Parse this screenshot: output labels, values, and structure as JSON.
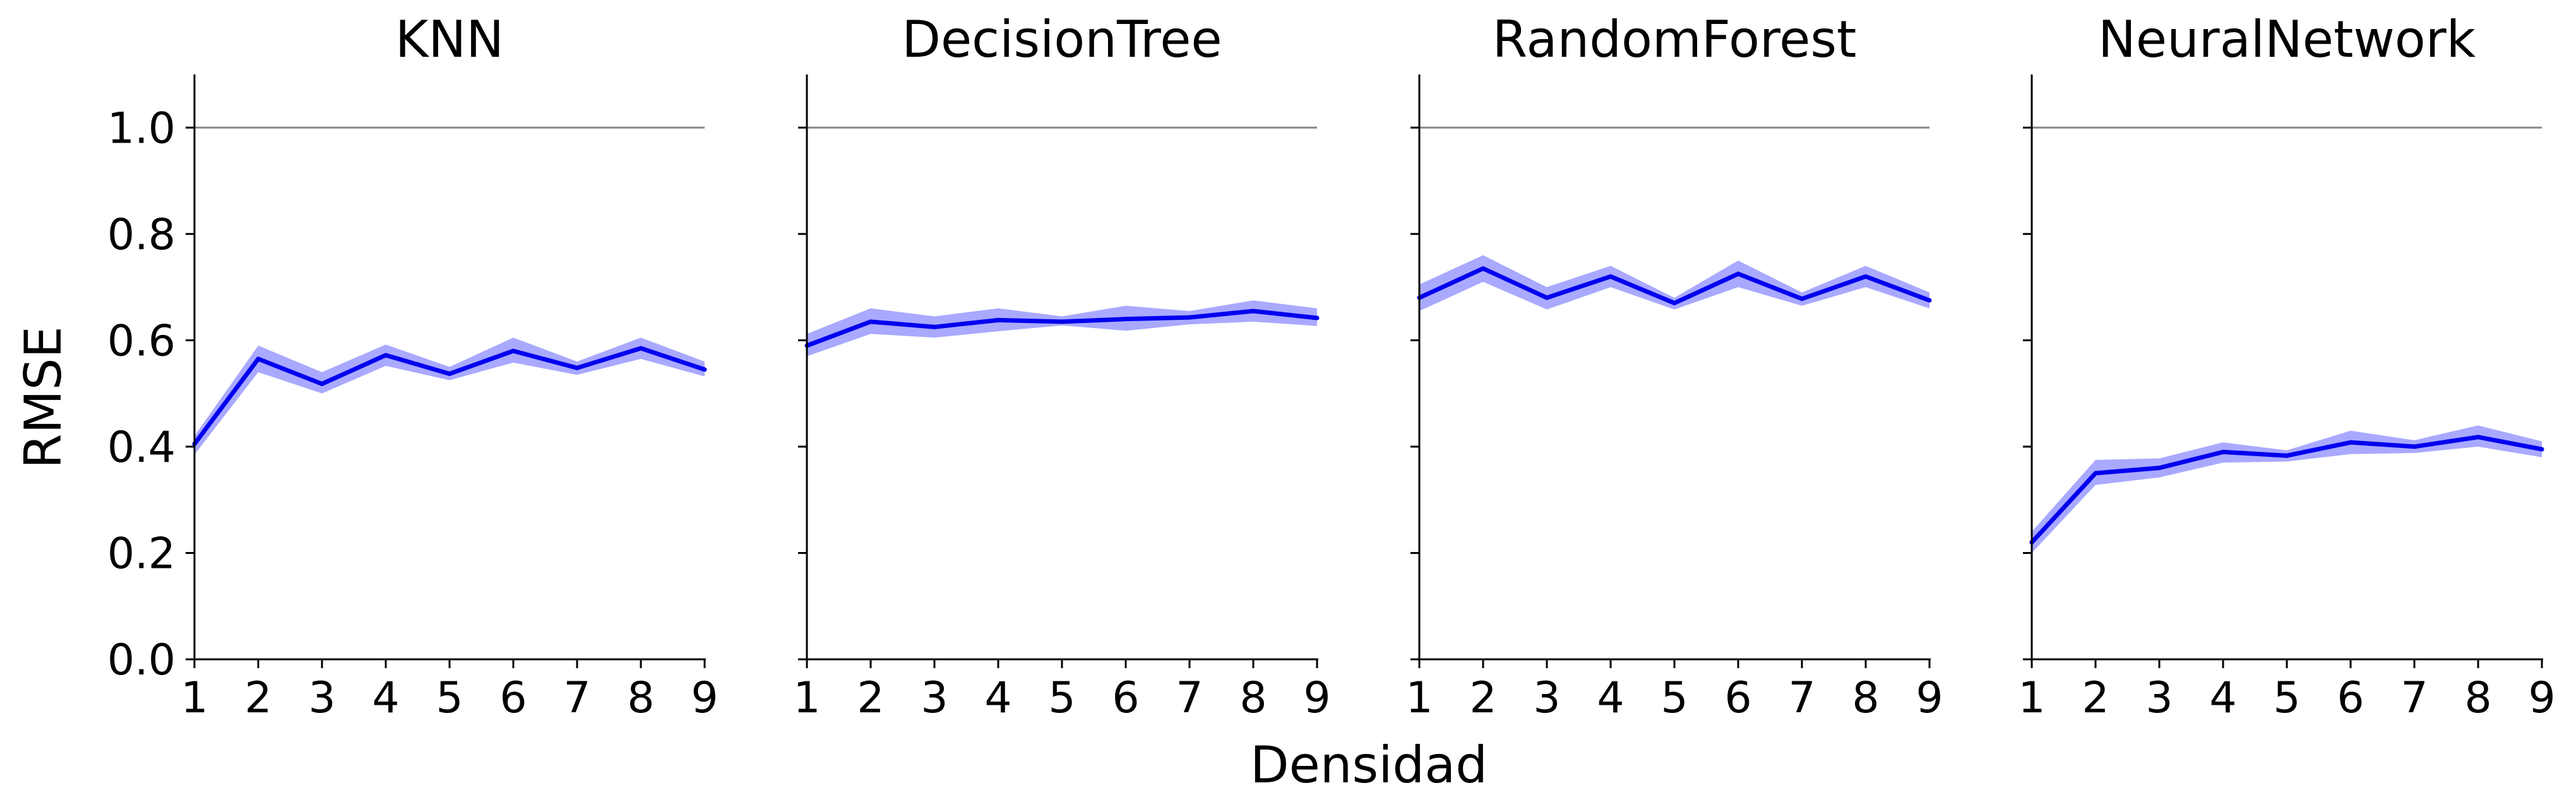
{
  "figure": {
    "xlabel": "Densidad",
    "ylabel": "RMSE"
  },
  "colors": {
    "line": "#0000ee",
    "band": "#a9a9ff",
    "reference": "#888888",
    "axis": "#000000"
  },
  "chart_data": [
    {
      "type": "line",
      "title": "KNN",
      "x": [
        1,
        2,
        3,
        4,
        5,
        6,
        7,
        8,
        9
      ],
      "values": [
        0.405,
        0.565,
        0.518,
        0.572,
        0.537,
        0.58,
        0.548,
        0.585,
        0.545
      ],
      "band_lower": [
        0.385,
        0.54,
        0.5,
        0.552,
        0.525,
        0.558,
        0.535,
        0.565,
        0.532
      ],
      "band_upper": [
        0.42,
        0.59,
        0.54,
        0.592,
        0.55,
        0.605,
        0.56,
        0.605,
        0.56
      ],
      "reference_y": 1.0,
      "xlim": [
        1,
        9
      ],
      "ylim": [
        0,
        1.1
      ],
      "xticks": [
        "1",
        "2",
        "3",
        "4",
        "5",
        "6",
        "7",
        "8",
        "9"
      ],
      "yticks": [
        "0.0",
        "0.2",
        "0.4",
        "0.6",
        "0.8",
        "1.0"
      ]
    },
    {
      "type": "line",
      "title": "DecisionTree",
      "x": [
        1,
        2,
        3,
        4,
        5,
        6,
        7,
        8,
        9
      ],
      "values": [
        0.59,
        0.635,
        0.625,
        0.638,
        0.635,
        0.64,
        0.643,
        0.655,
        0.642
      ],
      "band_lower": [
        0.57,
        0.612,
        0.605,
        0.617,
        0.628,
        0.618,
        0.63,
        0.635,
        0.627
      ],
      "band_upper": [
        0.612,
        0.66,
        0.645,
        0.66,
        0.645,
        0.665,
        0.655,
        0.675,
        0.66
      ],
      "reference_y": 1.0,
      "xlim": [
        1,
        9
      ],
      "ylim": [
        0,
        1.1
      ],
      "xticks": [
        "1",
        "2",
        "3",
        "4",
        "5",
        "6",
        "7",
        "8",
        "9"
      ],
      "yticks": []
    },
    {
      "type": "line",
      "title": "RandomForest",
      "x": [
        1,
        2,
        3,
        4,
        5,
        6,
        7,
        8,
        9
      ],
      "values": [
        0.68,
        0.735,
        0.68,
        0.72,
        0.67,
        0.725,
        0.678,
        0.72,
        0.675
      ],
      "band_lower": [
        0.655,
        0.71,
        0.658,
        0.7,
        0.658,
        0.7,
        0.665,
        0.7,
        0.66
      ],
      "band_upper": [
        0.705,
        0.76,
        0.7,
        0.74,
        0.68,
        0.75,
        0.69,
        0.74,
        0.69
      ],
      "reference_y": 1.0,
      "xlim": [
        1,
        9
      ],
      "ylim": [
        0,
        1.1
      ],
      "xticks": [
        "1",
        "2",
        "3",
        "4",
        "5",
        "6",
        "7",
        "8",
        "9"
      ],
      "yticks": []
    },
    {
      "type": "line",
      "title": "NeuralNetwork",
      "x": [
        1,
        2,
        3,
        4,
        5,
        6,
        7,
        8,
        9
      ],
      "values": [
        0.22,
        0.35,
        0.36,
        0.39,
        0.383,
        0.408,
        0.4,
        0.418,
        0.395
      ],
      "band_lower": [
        0.2,
        0.328,
        0.342,
        0.37,
        0.372,
        0.386,
        0.388,
        0.4,
        0.38
      ],
      "band_upper": [
        0.24,
        0.375,
        0.378,
        0.408,
        0.393,
        0.43,
        0.412,
        0.44,
        0.41
      ],
      "reference_y": 1.0,
      "xlim": [
        1,
        9
      ],
      "ylim": [
        0,
        1.1
      ],
      "xticks": [
        "1",
        "2",
        "3",
        "4",
        "5",
        "6",
        "7",
        "8",
        "9"
      ],
      "yticks": []
    }
  ]
}
